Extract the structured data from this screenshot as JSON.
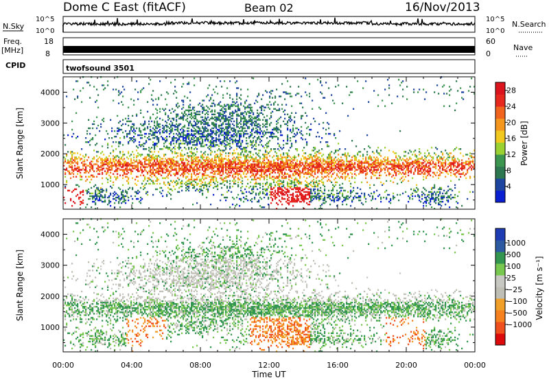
{
  "header": {
    "station": "Dome C East (fitACF)",
    "beam": "Beam 02",
    "date": "16/Nov/2013"
  },
  "strips": {
    "nsky_label": "N.Sky",
    "nsky_ticks": [
      "10^5",
      "10^0"
    ],
    "nsearch_label": "N.Search",
    "nsearch_ticks": [
      "10^5",
      "10^0"
    ],
    "freq_label_1": "Freq.",
    "freq_label_2": "[MHz]",
    "freq_ticks": [
      "18",
      "8"
    ],
    "nave_label": "Nave",
    "nave_ticks": [
      "60",
      "0"
    ],
    "cpid_label": "CPID",
    "cpid_value": "twofsound 3501"
  },
  "colors": {
    "power": [
      "#0a1ed2",
      "#1e46a0",
      "#2d7850",
      "#3c9650",
      "#9bd232",
      "#f0c81e",
      "#f5961e",
      "#f0641e",
      "#e6281e",
      "#dc141e"
    ],
    "velocity": [
      "#dc0a0a",
      "#f0501e",
      "#f5821e",
      "#f0a028",
      "#bebeb4",
      "#c8c8c3",
      "#78c850",
      "#329650",
      "#2d5aa0",
      "#1e3cb4"
    ]
  },
  "chart_data": [
    {
      "type": "heatmap",
      "panel": "power",
      "xlabel": "",
      "ylabel": "Slant Range [km]",
      "ylim": [
        200,
        4500
      ],
      "yticks": [
        "1000",
        "2000",
        "3000",
        "4000"
      ],
      "xticks": [
        "00:00",
        "04:00",
        "08:00",
        "12:00",
        "16:00",
        "20:00",
        "00:00"
      ],
      "colorbar_label": "Power [dB]",
      "colorbar_ticks": [
        "4",
        "8",
        "12",
        "16",
        "20",
        "24",
        "28"
      ],
      "colorbar_range": [
        0,
        30
      ]
    },
    {
      "type": "heatmap",
      "panel": "velocity",
      "xlabel": "Time UT",
      "ylabel": "Slant Range [km]",
      "ylim": [
        200,
        4500
      ],
      "yticks": [
        "1000",
        "2000",
        "3000",
        "4000"
      ],
      "xticks": [
        "00:00",
        "04:00",
        "08:00",
        "12:00",
        "16:00",
        "20:00",
        "00:00"
      ],
      "colorbar_label": "Velocity [m s⁻¹]",
      "colorbar_ticks": [
        "1000",
        "500",
        "100",
        "25",
        "−25",
        "−100",
        "−500",
        "−1000"
      ]
    }
  ]
}
